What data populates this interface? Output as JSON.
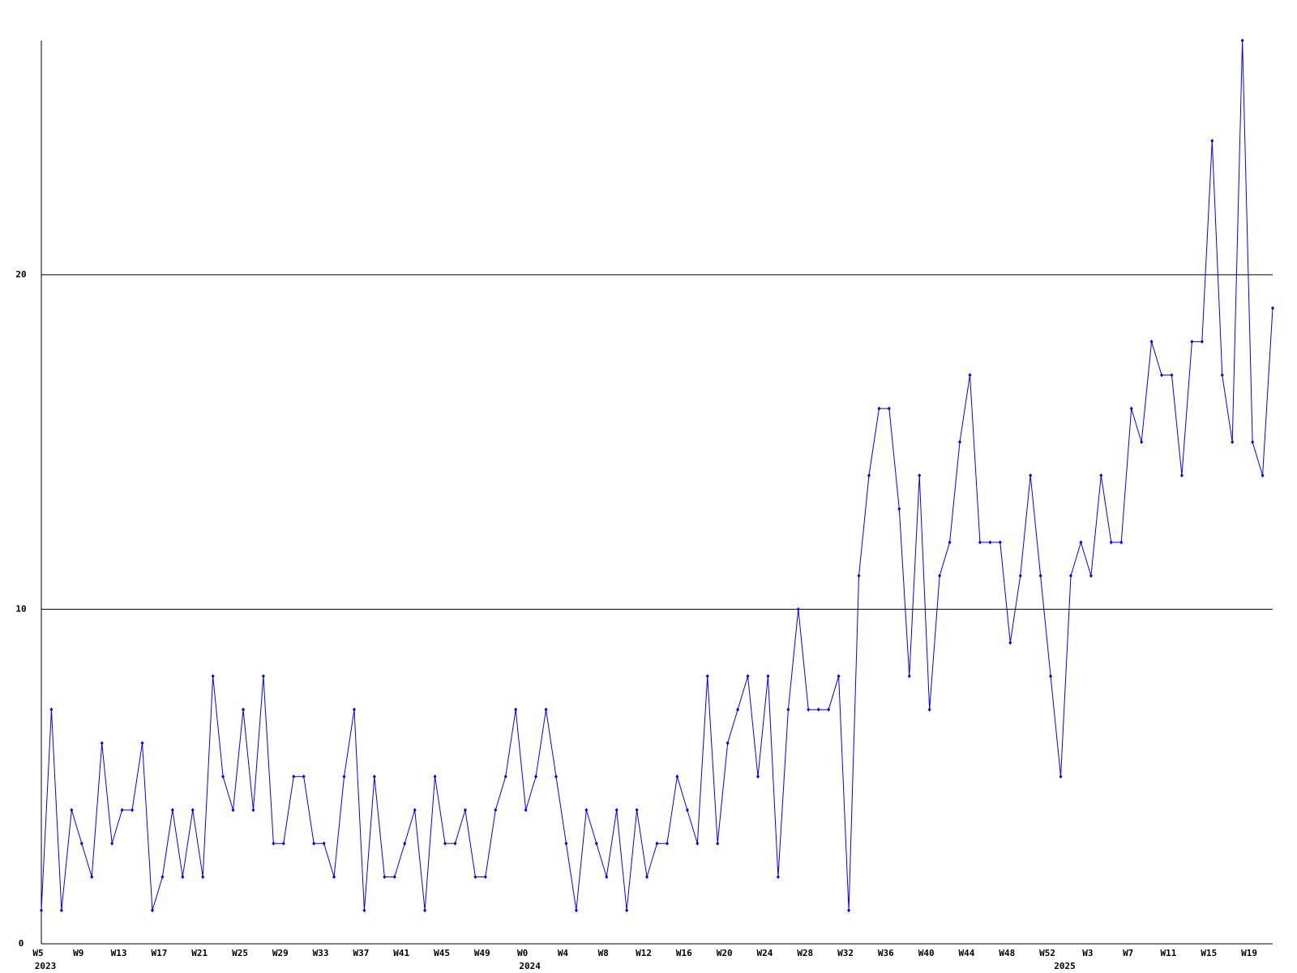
{
  "chart_data": {
    "type": "line",
    "color": "#0000ff",
    "grid": true,
    "ylim": [
      0,
      27
    ],
    "yticks": [
      0,
      10,
      20
    ],
    "categories": [
      "W5",
      null,
      null,
      null,
      "W9",
      null,
      null,
      null,
      "W13",
      null,
      null,
      null,
      "W17",
      null,
      null,
      null,
      "W21",
      null,
      null,
      null,
      "W25",
      null,
      null,
      null,
      "W29",
      null,
      null,
      null,
      "W33",
      null,
      null,
      null,
      "W37",
      null,
      null,
      null,
      "W41",
      null,
      null,
      null,
      "W45",
      null,
      null,
      null,
      "W49",
      null,
      null,
      null,
      "W0",
      null,
      null,
      null,
      "W4",
      null,
      null,
      null,
      "W8",
      null,
      null,
      null,
      "W12",
      null,
      null,
      null,
      "W16",
      null,
      null,
      null,
      "W20",
      null,
      null,
      null,
      "W24",
      null,
      null,
      null,
      "W28",
      null,
      null,
      null,
      "W32",
      null,
      null,
      null,
      "W36",
      null,
      null,
      null,
      "W40",
      null,
      null,
      null,
      "W44",
      null,
      null,
      null,
      "W48",
      null,
      null,
      null,
      "W52",
      null,
      null,
      null,
      "W3",
      null,
      null,
      null,
      "W7",
      null,
      null,
      null,
      "W11",
      null,
      null,
      null,
      "W15",
      null,
      null,
      null,
      "W19",
      null,
      null
    ],
    "category_years": [
      "2023",
      null,
      null,
      null,
      null,
      null,
      null,
      null,
      null,
      null,
      null,
      null,
      null,
      null,
      null,
      null,
      null,
      null,
      null,
      null,
      null,
      null,
      null,
      null,
      null,
      null,
      null,
      null,
      null,
      null,
      null,
      null,
      null,
      null,
      null,
      null,
      null,
      null,
      null,
      null,
      null,
      null,
      null,
      null,
      null,
      null,
      null,
      null,
      "2024",
      null,
      null,
      null,
      null,
      null,
      null,
      null,
      null,
      null,
      null,
      null,
      null,
      null,
      null,
      null,
      null,
      null,
      null,
      null,
      null,
      null,
      null,
      null,
      null,
      null,
      null,
      null,
      null,
      null,
      null,
      null,
      null,
      null,
      null,
      null,
      null,
      null,
      null,
      null,
      null,
      null,
      null,
      null,
      null,
      null,
      null,
      null,
      null,
      null,
      null,
      null,
      null,
      "2025",
      null,
      null,
      null,
      null,
      null,
      null,
      null,
      null,
      null,
      null,
      null,
      null,
      null,
      null,
      null,
      null,
      null,
      null,
      null,
      null,
      null
    ],
    "values": [
      1,
      7,
      1,
      4,
      3,
      2,
      6,
      3,
      4,
      4,
      6,
      1,
      2,
      4,
      2,
      4,
      2,
      8,
      5,
      4,
      7,
      4,
      8,
      3,
      3,
      5,
      5,
      3,
      3,
      2,
      5,
      7,
      1,
      5,
      2,
      2,
      3,
      4,
      1,
      5,
      3,
      3,
      4,
      2,
      2,
      4,
      5,
      7,
      4,
      5,
      7,
      5,
      3,
      1,
      4,
      3,
      2,
      4,
      1,
      4,
      2,
      3,
      3,
      5,
      4,
      3,
      8,
      3,
      6,
      7,
      8,
      5,
      8,
      2,
      7,
      10,
      7,
      7,
      7,
      8,
      1,
      11,
      14,
      16,
      16,
      13,
      8,
      14,
      7,
      11,
      12,
      15,
      17,
      12,
      12,
      12,
      9,
      11,
      14,
      11,
      8,
      5,
      11,
      12,
      11,
      14,
      12,
      12,
      16,
      15,
      18,
      17,
      17,
      14,
      18,
      18,
      24,
      17,
      15,
      27,
      15,
      14,
      19
    ]
  }
}
